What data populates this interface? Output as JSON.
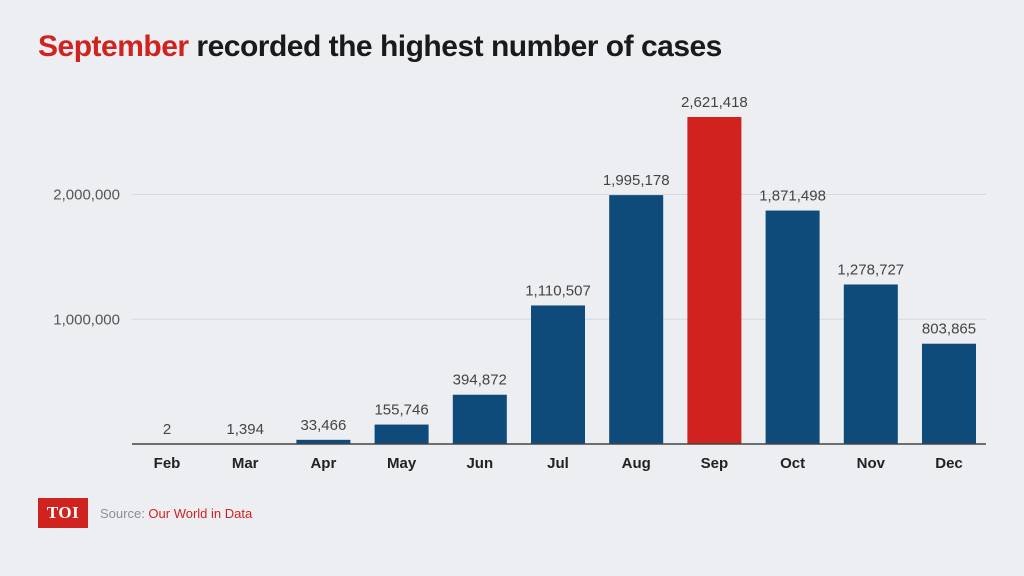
{
  "title": {
    "highlight": "September",
    "rest": " recorded the highest number of cases"
  },
  "footer": {
    "logo_text": "TOI",
    "source_label": "Source: ",
    "source_name": "Our World in Data"
  },
  "colors": {
    "bar": "#0e4a7a",
    "highlight_bar": "#d0231f",
    "background": "#eceef1"
  },
  "chart_data": {
    "type": "bar",
    "categories": [
      "Feb",
      "Mar",
      "Apr",
      "May",
      "Jun",
      "Jul",
      "Aug",
      "Sep",
      "Oct",
      "Nov",
      "Dec"
    ],
    "values": [
      2,
      1394,
      33466,
      155746,
      394872,
      1110507,
      1995178,
      2621418,
      1871498,
      1278727,
      803865
    ],
    "value_labels": [
      "2",
      "1,394",
      "33,466",
      "155,746",
      "394,872",
      "1,110,507",
      "1,995,178",
      "2,621,418",
      "1,871,498",
      "1,278,727",
      "803,865"
    ],
    "highlight_category": "Sep",
    "yticks": [
      1000000,
      2000000
    ],
    "ytick_labels": [
      "1,000,000",
      "2,000,000"
    ],
    "ylim": [
      0,
      2621418
    ],
    "grid": true
  }
}
